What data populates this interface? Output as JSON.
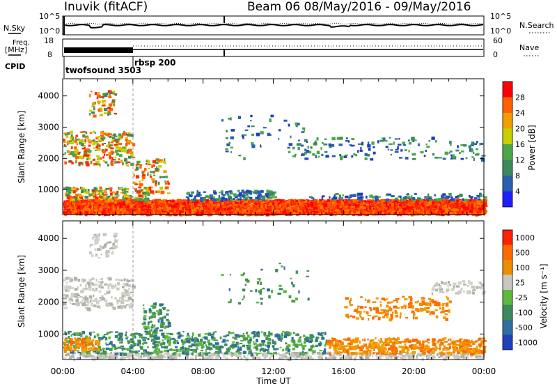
{
  "header": {
    "station": "Inuvik (fitACF)",
    "beam_date": "Beam 06  08/May/2016 - 09/May/2016"
  },
  "noise_panel": {
    "left_label": "N.Sky",
    "right_label": "N.Search",
    "left_ticks": [
      "10^5",
      "10^0"
    ],
    "right_ticks": [
      "10^5",
      "10^0"
    ]
  },
  "freq_panel": {
    "left_label_line1": "Freq.",
    "left_label_line2": "[MHz]",
    "right_label": "Nave",
    "left_ticks": [
      "18",
      "8"
    ],
    "right_ticks": [
      "60",
      "0"
    ],
    "cpid_label": "CPID",
    "programs": [
      {
        "name": "twofsound 3503",
        "start_hour": 0
      },
      {
        "name": "rbsp 200",
        "start_hour": 4
      }
    ]
  },
  "time_axis": {
    "title": "Time UT",
    "ticks": [
      "00:00",
      "04:00",
      "08:00",
      "12:00",
      "16:00",
      "20:00",
      "00:00"
    ],
    "range_hours": [
      0,
      24
    ]
  },
  "chart_data": [
    {
      "type": "heatmap",
      "ylabel": "Slant Range [km]",
      "yticks": [
        "1000",
        "2000",
        "3000",
        "4000"
      ],
      "yvalues": [
        1000,
        2000,
        3000,
        4000
      ],
      "ylim": [
        200,
        4550
      ],
      "colorbar_label": "Power [dB]",
      "colorbar_ticks": [
        "4",
        "8",
        "12",
        "16",
        "20",
        "24",
        "28"
      ],
      "colorbar_colors": [
        "#2020ff",
        "#2a5fb0",
        "#3d8a5c",
        "#4aa84a",
        "#c8d000",
        "#f0a000",
        "#ff6000",
        "#ff0000"
      ]
    },
    {
      "type": "heatmap",
      "ylabel": "Slant Range [km]",
      "yticks": [
        "1000",
        "2000",
        "3000",
        "4000"
      ],
      "yvalues": [
        1000,
        2000,
        3000,
        4000
      ],
      "ylim": [
        200,
        4550
      ],
      "colorbar_label": "Velocity [m s⁻¹]",
      "colorbar_ticks": [
        "1000",
        "500",
        "100",
        "25",
        "-25",
        "-100",
        "-500",
        "-1000"
      ],
      "colorbar_colors": [
        "#2040c0",
        "#2f6fa0",
        "#3d8a5c",
        "#5cba3c",
        "#c8c8c0",
        "#f08c00",
        "#ff6a00",
        "#ff2000"
      ]
    }
  ]
}
